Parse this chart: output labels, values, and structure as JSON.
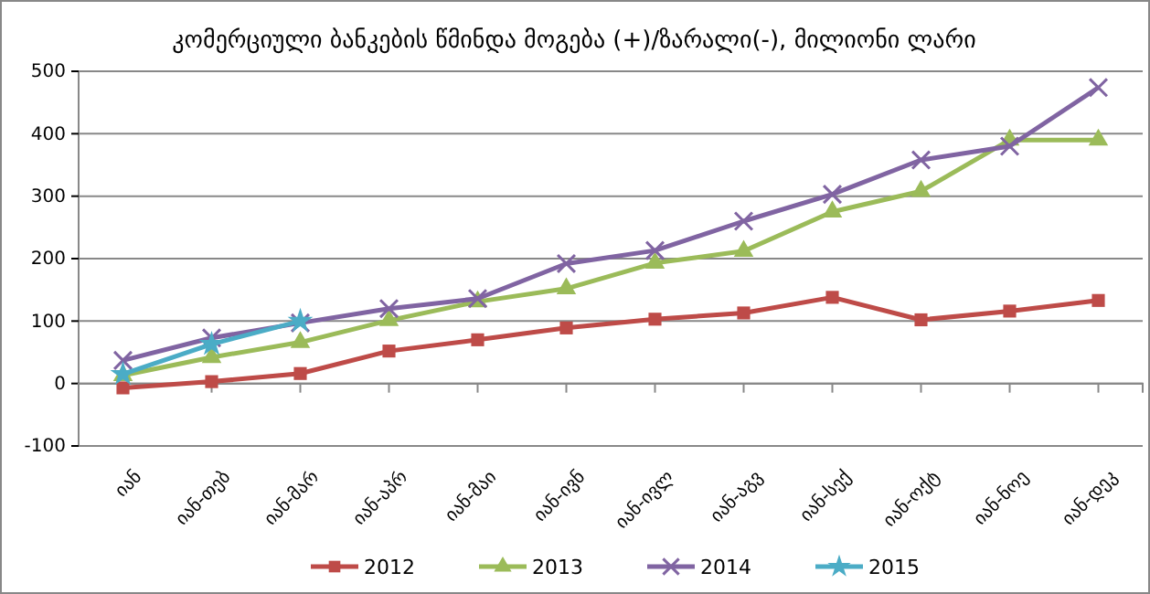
{
  "chart_data": {
    "type": "line",
    "title": "კომერციული ბანკების წმინდა მოგება (+)/ზარალი(-), მილიონი ლარი",
    "categories": [
      "იან",
      "იან-თებ",
      "იან-მარ",
      "იან-აპრ",
      "იან-მაი",
      "იან-ივნ",
      "იან-ივლ",
      "იან-აგვ",
      "იან-სექ",
      "იან-ოქტ",
      "იან-ნოე",
      "იან-დეკ"
    ],
    "series": [
      {
        "name": "2012",
        "color": "#be4b48",
        "marker": "square",
        "values": [
          -7,
          3,
          16,
          52,
          70,
          89,
          103,
          113,
          138,
          102,
          116,
          133
        ]
      },
      {
        "name": "2013",
        "color": "#9bbb59",
        "marker": "triangle",
        "values": [
          13,
          42,
          66,
          101,
          131,
          152,
          193,
          212,
          275,
          308,
          390,
          390
        ]
      },
      {
        "name": "2014",
        "color": "#8064a2",
        "marker": "cross",
        "values": [
          37,
          73,
          97,
          120,
          136,
          192,
          213,
          260,
          303,
          358,
          380,
          474
        ]
      },
      {
        "name": "2015",
        "color": "#4bacc6",
        "marker": "star",
        "values": [
          15,
          63,
          100,
          null,
          null,
          null,
          null,
          null,
          null,
          null,
          null,
          null
        ]
      }
    ],
    "ylim": [
      -100,
      500
    ],
    "yticks": [
      -100,
      0,
      100,
      200,
      300,
      400,
      500
    ],
    "grid": "y",
    "legend": "bottom"
  }
}
